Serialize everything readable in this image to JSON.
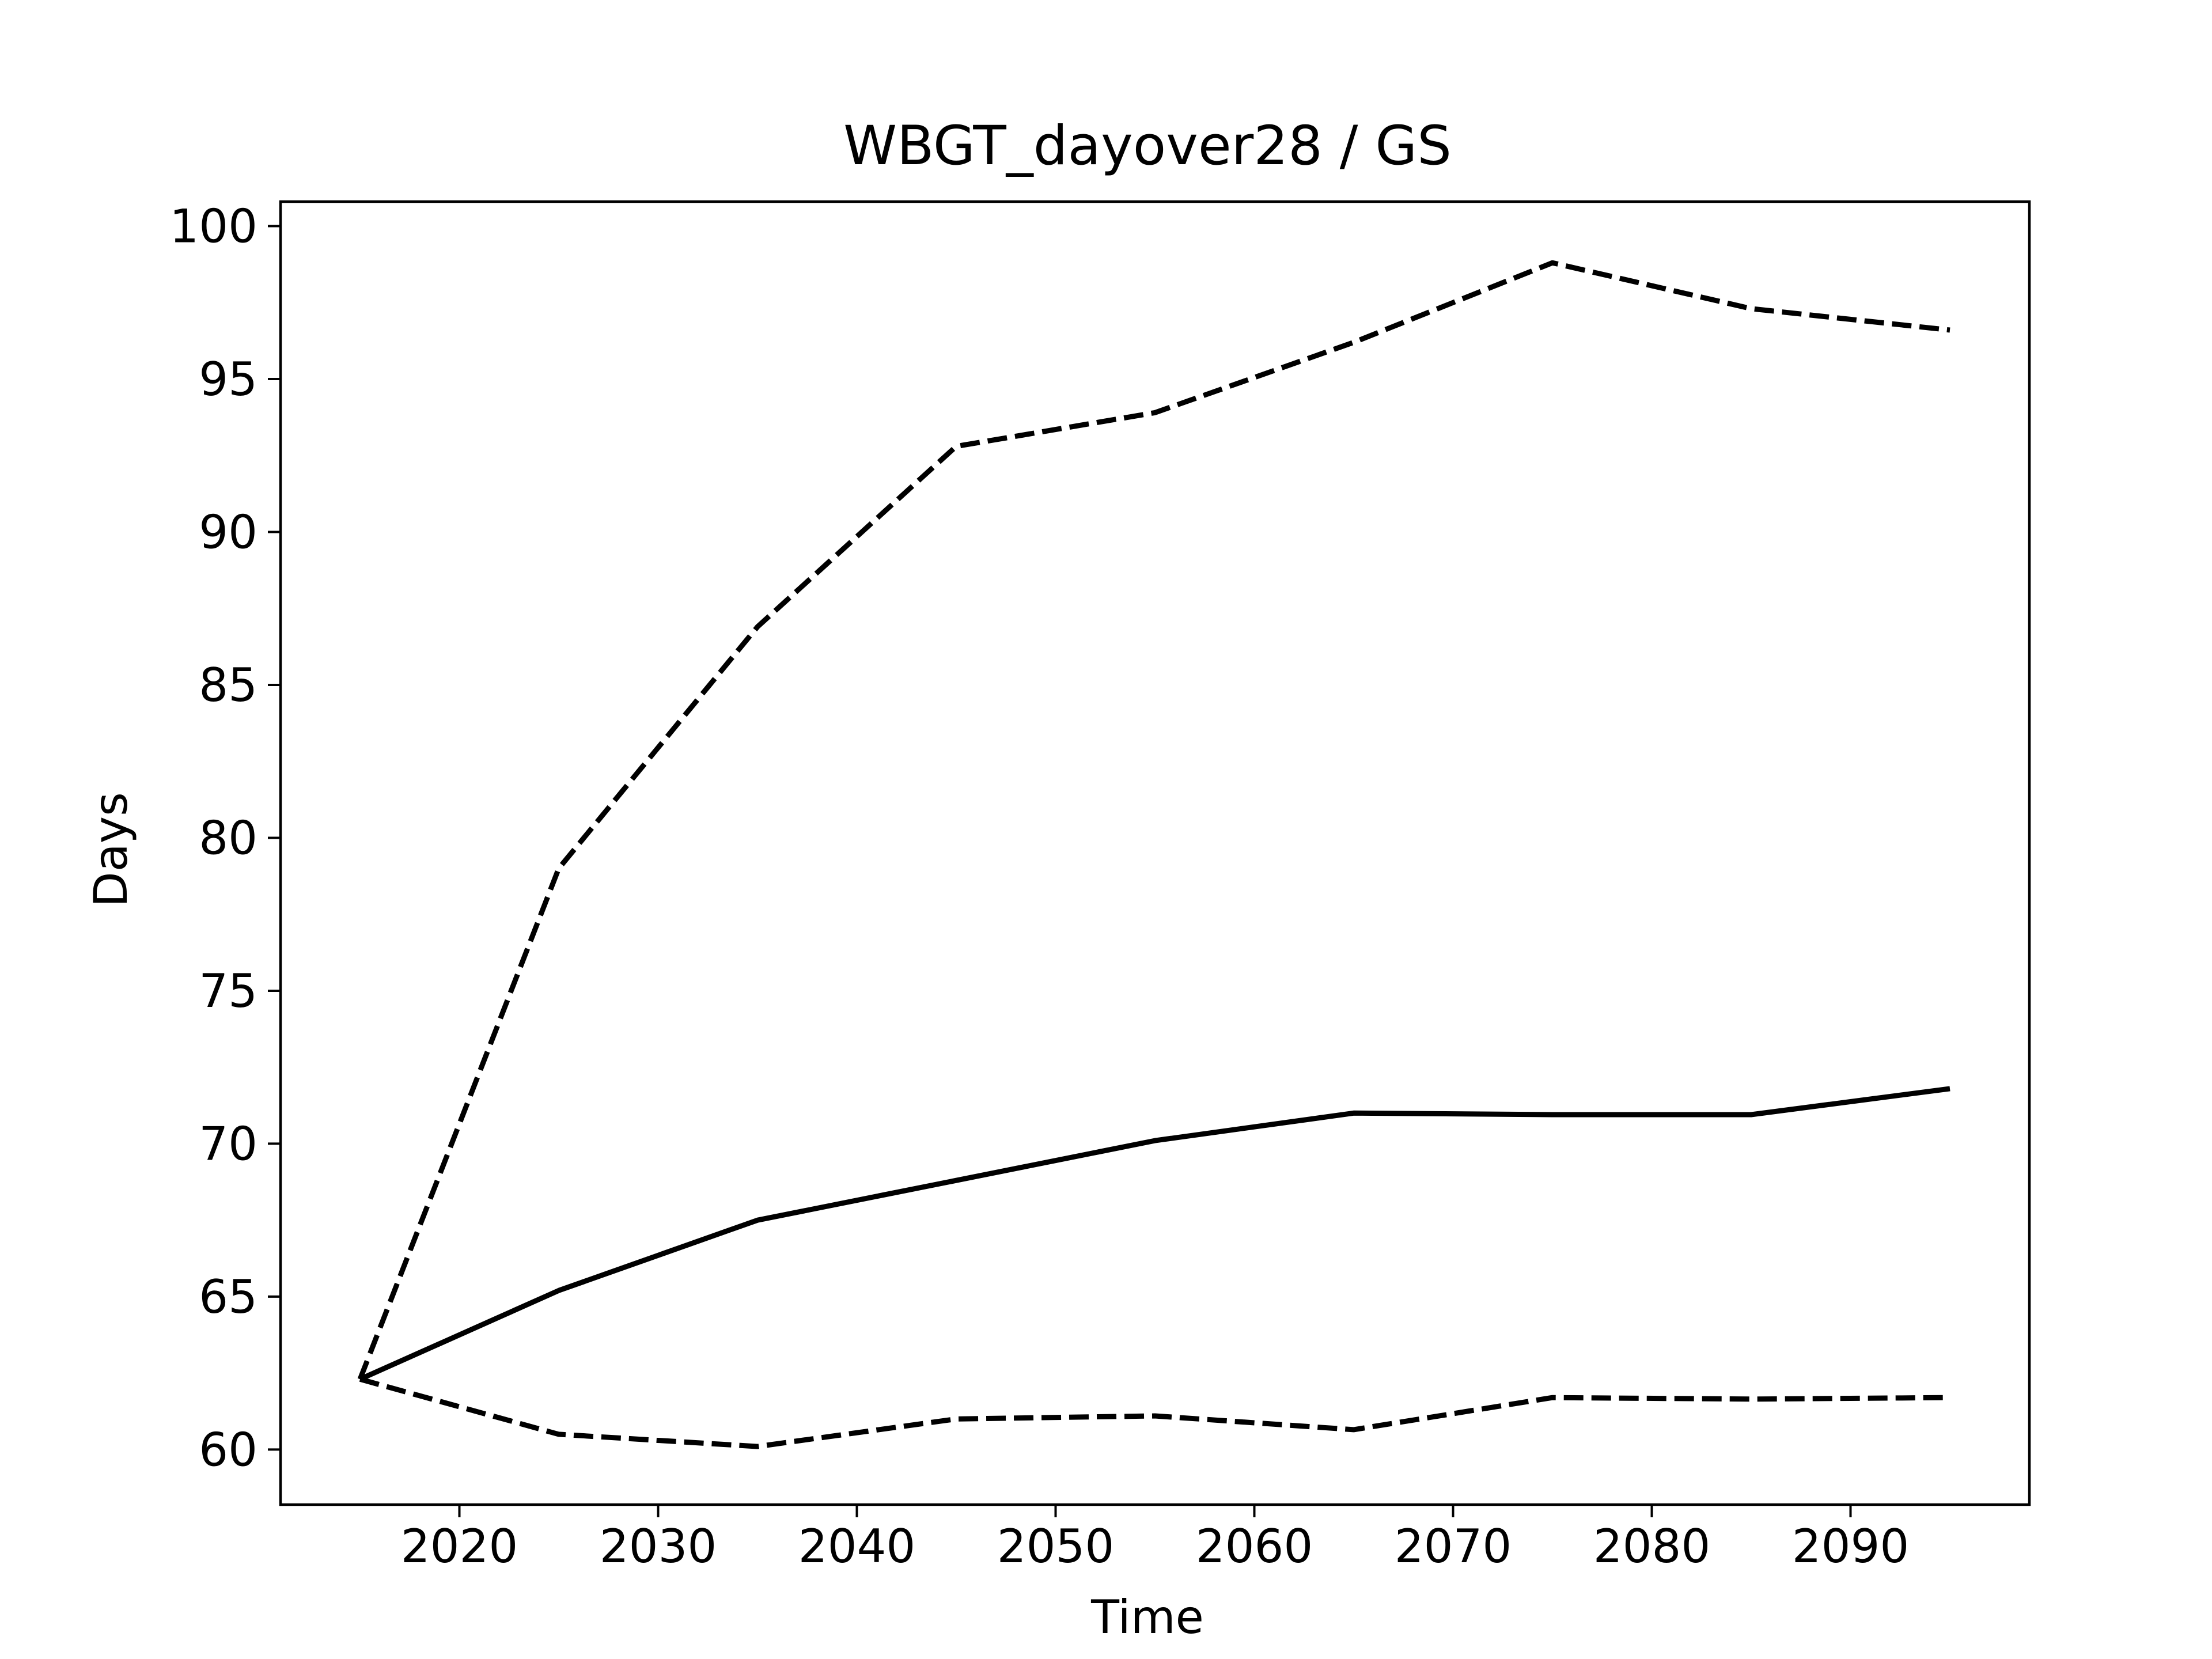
{
  "chart_data": {
    "type": "line",
    "title": "WBGT_dayover28 / GS",
    "xlabel": "Time",
    "ylabel": "Days",
    "x": [
      2015,
      2025,
      2035,
      2045,
      2055,
      2065,
      2075,
      2085,
      2095
    ],
    "series": [
      {
        "style": "dashed",
        "color": "#000000",
        "values": [
          62.3,
          79.0,
          86.9,
          92.8,
          93.9,
          96.2,
          98.8,
          97.3,
          96.6
        ]
      },
      {
        "style": "solid",
        "color": "#000000",
        "values": [
          62.3,
          65.2,
          67.5,
          68.8,
          70.1,
          71.0,
          70.95,
          70.95,
          71.8
        ]
      },
      {
        "style": "dashed",
        "color": "#000000",
        "values": [
          62.3,
          60.5,
          60.1,
          61.0,
          61.1,
          60.65,
          61.7,
          61.65,
          61.7
        ]
      }
    ],
    "xlim": [
      2011,
      2099
    ],
    "ylim": [
      58.2,
      100.8
    ],
    "xticks": [
      2020,
      2030,
      2040,
      2050,
      2060,
      2070,
      2080,
      2090
    ],
    "yticks": [
      60,
      65,
      70,
      75,
      80,
      85,
      90,
      95,
      100
    ],
    "grid": false,
    "legend": "none"
  }
}
